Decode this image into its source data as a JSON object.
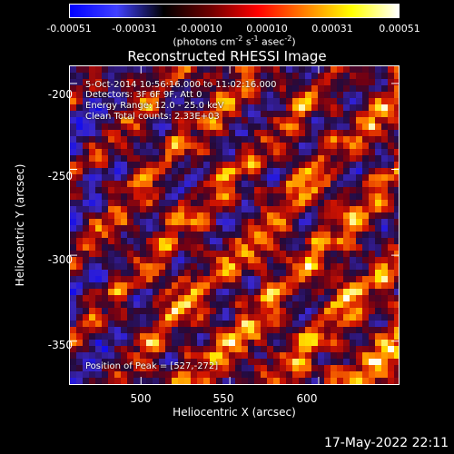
{
  "colorbar": {
    "ticks": [
      "-0.00051",
      "-0.00031",
      "-0.00010",
      "0.00010",
      "0.00031",
      "0.00051"
    ],
    "unit_pre": "(photons cm",
    "unit_exp1": "-2",
    "unit_mid1": " s",
    "unit_exp2": "-1",
    "unit_mid2": " asec",
    "unit_exp3": "-2",
    "unit_post": ")",
    "colors": [
      "#0000ff",
      "#4040ff",
      "#000000",
      "#700000",
      "#ff0000",
      "#ff8000",
      "#ffff00",
      "#ffffff"
    ]
  },
  "chart_data": {
    "type": "heatmap",
    "title": "Reconstructed RHESSI Image",
    "xlabel": "Heliocentric X (arcsec)",
    "ylabel": "Heliocentric Y (arcsec)",
    "x_ticks": [
      500,
      550,
      600
    ],
    "y_ticks": [
      -200,
      -250,
      -300,
      -350
    ],
    "xlim": [
      460,
      645
    ],
    "ylim": [
      -375,
      -190
    ],
    "annotations": [
      "5-Oct-2014 10:56:16.000 to 11:02:16.000",
      "Detectors: 3F 6F 9F, Att 0",
      "Energy Range: 12.0 - 25.0 keV",
      "Clean    Total counts: 2.33E+03"
    ],
    "peak_label": "Position of Peak = [527,-272]",
    "peak": [
      527,
      -272
    ],
    "vmin": -0.00051,
    "vmax": 0.00051
  },
  "timestamp": "17-May-2022 22:11"
}
